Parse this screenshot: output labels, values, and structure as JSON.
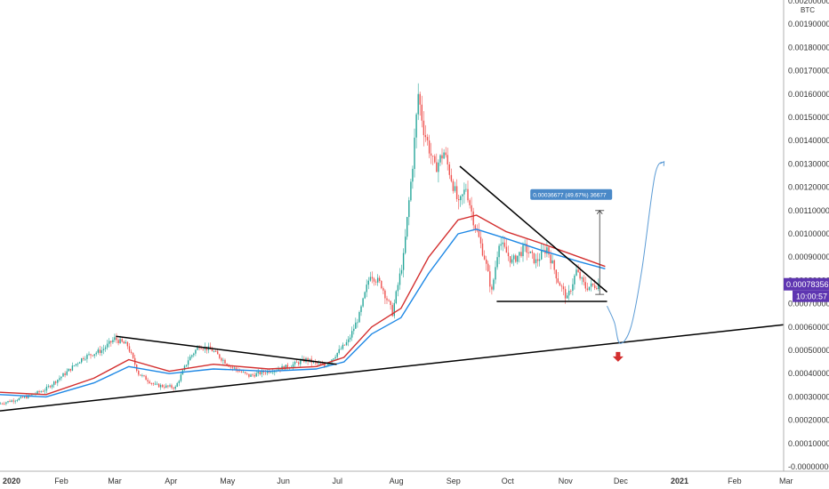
{
  "chart_data": {
    "type": "candlestick",
    "unit_label": "BTC",
    "y_axis": {
      "ticks": [
        "0.00200000",
        "0.00190000",
        "0.00180000",
        "0.00170000",
        "0.00160000",
        "0.00150000",
        "0.00140000",
        "0.00130000",
        "0.00120000",
        "0.00110000",
        "0.00100000",
        "0.00090000",
        "0.00080000",
        "0.00070000",
        "0.00060000",
        "0.00050000",
        "0.00040000",
        "0.00030000",
        "0.00020000",
        "0.00010000",
        "-0.00000000"
      ],
      "tick_values": [
        0.002,
        0.0019,
        0.0018,
        0.0017,
        0.0016,
        0.0015,
        0.0014,
        0.0013,
        0.0012,
        0.0011,
        0.001,
        0.0009,
        0.0008,
        0.0007,
        0.0006,
        0.0005,
        0.0004,
        0.0003,
        0.0002,
        0.0001,
        0.0
      ],
      "range": [
        0.0,
        0.002
      ]
    },
    "x_axis": {
      "ticks": [
        {
          "label": "2020",
          "date": "2020-01-01",
          "bold": true
        },
        {
          "label": "Feb",
          "date": "2020-02-01"
        },
        {
          "label": "Mar",
          "date": "2020-03-01"
        },
        {
          "label": "Apr",
          "date": "2020-04-01"
        },
        {
          "label": "May",
          "date": "2020-05-01"
        },
        {
          "label": "Jun",
          "date": "2020-06-01"
        },
        {
          "label": "Jul",
          "date": "2020-07-01"
        },
        {
          "label": "Aug",
          "date": "2020-08-01"
        },
        {
          "label": "Sep",
          "date": "2020-09-01"
        },
        {
          "label": "Oct",
          "date": "2020-10-01"
        },
        {
          "label": "Nov",
          "date": "2020-11-01"
        },
        {
          "label": "Dec",
          "date": "2020-12-01"
        },
        {
          "label": "2021",
          "date": "2021-01-01",
          "bold": true
        },
        {
          "label": "Feb",
          "date": "2021-02-01"
        },
        {
          "label": "Mar",
          "date": "2021-03-01"
        }
      ],
      "range": [
        "2019-12-31",
        "2021-03-01"
      ]
    },
    "price_path": [
      [
        "2019-12-31",
        0.00027
      ],
      [
        "2020-01-15",
        0.0003
      ],
      [
        "2020-01-25",
        0.00033
      ],
      [
        "2020-02-05",
        0.0004
      ],
      [
        "2020-02-15",
        0.00047
      ],
      [
        "2020-02-25",
        0.0005
      ],
      [
        "2020-03-03",
        0.00055
      ],
      [
        "2020-03-10",
        0.00052
      ],
      [
        "2020-03-16",
        0.0004
      ],
      [
        "2020-03-25",
        0.00035
      ],
      [
        "2020-04-05",
        0.00034
      ],
      [
        "2020-04-12",
        0.00046
      ],
      [
        "2020-04-18",
        0.00052
      ],
      [
        "2020-04-25",
        0.0005
      ],
      [
        "2020-05-05",
        0.00043
      ],
      [
        "2020-05-15",
        0.00039
      ],
      [
        "2020-05-25",
        0.00041
      ],
      [
        "2020-06-05",
        0.00043
      ],
      [
        "2020-06-15",
        0.00046
      ],
      [
        "2020-06-25",
        0.00043
      ],
      [
        "2020-07-01",
        0.00048
      ],
      [
        "2020-07-08",
        0.00054
      ],
      [
        "2020-07-14",
        0.00065
      ],
      [
        "2020-07-20",
        0.00083
      ],
      [
        "2020-07-26",
        0.00078
      ],
      [
        "2020-08-01",
        0.00066
      ],
      [
        "2020-08-07",
        0.0009
      ],
      [
        "2020-08-12",
        0.0013
      ],
      [
        "2020-08-15",
        0.0016
      ],
      [
        "2020-08-18",
        0.00145
      ],
      [
        "2020-08-24",
        0.00128
      ],
      [
        "2020-08-29",
        0.00135
      ],
      [
        "2020-09-02",
        0.00124
      ],
      [
        "2020-09-06",
        0.00112
      ],
      [
        "2020-09-10",
        0.0012
      ],
      [
        "2020-09-14",
        0.00106
      ],
      [
        "2020-09-20",
        0.0009
      ],
      [
        "2020-09-24",
        0.00075
      ],
      [
        "2020-09-28",
        0.00097
      ],
      [
        "2020-10-05",
        0.00088
      ],
      [
        "2020-10-12",
        0.00094
      ],
      [
        "2020-10-18",
        0.00088
      ],
      [
        "2020-10-24",
        0.00094
      ],
      [
        "2020-10-30",
        0.0008
      ],
      [
        "2020-11-04",
        0.00072
      ],
      [
        "2020-11-09",
        0.00084
      ],
      [
        "2020-11-14",
        0.00077
      ],
      [
        "2020-11-20",
        0.00078
      ]
    ],
    "moving_averages": [
      {
        "color": "#d32f2f",
        "points": [
          [
            "2019-12-31",
            0.00032
          ],
          [
            "2020-01-25",
            0.00031
          ],
          [
            "2020-02-20",
            0.00038
          ],
          [
            "2020-03-10",
            0.00046
          ],
          [
            "2020-04-01",
            0.00041
          ],
          [
            "2020-04-25",
            0.00044
          ],
          [
            "2020-05-25",
            0.00042
          ],
          [
            "2020-06-20",
            0.00043
          ],
          [
            "2020-07-05",
            0.00047
          ],
          [
            "2020-07-20",
            0.0006
          ],
          [
            "2020-08-05",
            0.00068
          ],
          [
            "2020-08-20",
            0.0009
          ],
          [
            "2020-09-05",
            0.00106
          ],
          [
            "2020-09-15",
            0.00108
          ],
          [
            "2020-10-01",
            0.00101
          ],
          [
            "2020-10-20",
            0.00096
          ],
          [
            "2020-11-10",
            0.0009
          ],
          [
            "2020-11-24",
            0.00086
          ]
        ]
      },
      {
        "color": "#1e88e5",
        "points": [
          [
            "2019-12-31",
            0.00031
          ],
          [
            "2020-01-25",
            0.0003
          ],
          [
            "2020-02-20",
            0.00036
          ],
          [
            "2020-03-10",
            0.00043
          ],
          [
            "2020-04-01",
            0.0004
          ],
          [
            "2020-04-25",
            0.00042
          ],
          [
            "2020-05-25",
            0.00041
          ],
          [
            "2020-06-20",
            0.00042
          ],
          [
            "2020-07-05",
            0.00045
          ],
          [
            "2020-07-20",
            0.00057
          ],
          [
            "2020-08-05",
            0.00064
          ],
          [
            "2020-08-20",
            0.00083
          ],
          [
            "2020-09-05",
            0.001
          ],
          [
            "2020-09-15",
            0.00102
          ],
          [
            "2020-10-01",
            0.00098
          ],
          [
            "2020-10-20",
            0.00093
          ],
          [
            "2020-11-10",
            0.00088
          ],
          [
            "2020-11-24",
            0.00085
          ]
        ]
      }
    ],
    "trendlines": [
      {
        "color": "#000000",
        "points": [
          [
            "2019-12-31",
            0.00024
          ],
          [
            "2021-03-01",
            0.00061
          ]
        ]
      },
      {
        "color": "#000000",
        "points": [
          [
            "2020-03-03",
            0.00056
          ],
          [
            "2020-07-01",
            0.00044
          ]
        ]
      },
      {
        "color": "#000000",
        "points": [
          [
            "2020-09-06",
            0.00129
          ],
          [
            "2020-11-25",
            0.00075
          ]
        ]
      },
      {
        "color": "#000000",
        "points": [
          [
            "2020-09-26",
            0.00071
          ],
          [
            "2020-11-25",
            0.00071
          ]
        ]
      }
    ],
    "projection": {
      "color": "#5b9bd5",
      "points": [
        [
          "2020-11-25",
          0.00069
        ],
        [
          "2020-11-29",
          0.00062
        ],
        [
          "2020-12-02",
          0.00053
        ],
        [
          "2020-12-08",
          0.0006
        ],
        [
          "2020-12-14",
          0.00085
        ],
        [
          "2020-12-21",
          0.00125
        ],
        [
          "2020-12-26",
          0.00131
        ]
      ]
    },
    "measure": {
      "label": "0.00036677 (49.67%) 36677",
      "from": 0.00074,
      "to": 0.0011,
      "date": "2020-11-21",
      "color": "#4a89c8"
    },
    "down_arrow": {
      "date": "2020-12-01",
      "value": 0.00047,
      "color": "#d32f2f"
    },
    "current_price": {
      "label": "0.00078356",
      "value": 0.00078356,
      "color": "#5e35b1"
    },
    "countdown": {
      "label": "10:00:57",
      "color": "#5e35b1"
    },
    "bullish_color": "#26a69a",
    "bearish_color": "#ef5350"
  }
}
